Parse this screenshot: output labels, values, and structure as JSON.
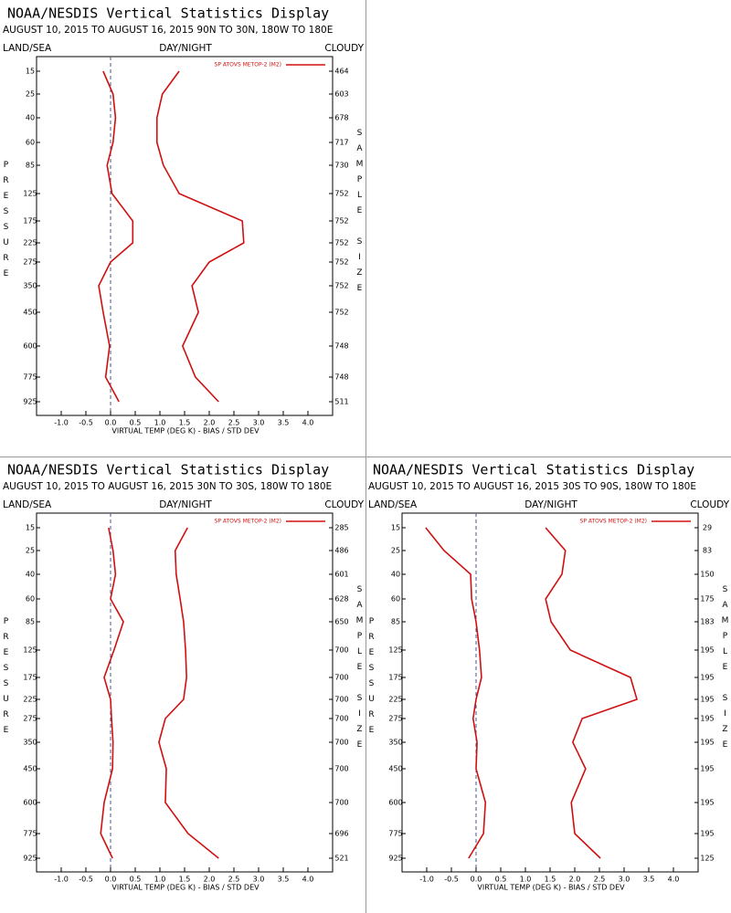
{
  "chart_data": [
    {
      "type": "line",
      "title": "NOAA/NESDIS Vertical Statistics Display",
      "subtitle": "AUGUST 10, 2015 TO AUGUST 16, 2015  90N TO 30N, 180W TO 180E",
      "left_label": "LAND/SEA",
      "center_label": "DAY/NIGHT",
      "right_label": "CLOUDY",
      "ylabel": "PRESSURE",
      "y2label": "SAMPLE SIZE",
      "xlabel": "VIRTUAL TEMP (DEG K) - BIAS / STD DEV",
      "categories": [
        15,
        25,
        40,
        60,
        85,
        125,
        175,
        225,
        275,
        350,
        450,
        600,
        775,
        925
      ],
      "sample_size": [
        464,
        603,
        678,
        717,
        730,
        752,
        752,
        752,
        752,
        752,
        752,
        748,
        748,
        511
      ],
      "series": [
        {
          "name": "SP ATOVS METOP-2 (M2)",
          "color": "#d01010",
          "bias": [
            -0.15,
            0.05,
            0.1,
            0.05,
            -0.07,
            0.03,
            0.45,
            0.45,
            0.0,
            -0.24,
            -0.15,
            -0.02,
            -0.1,
            0.17
          ],
          "std_dev": [
            1.39,
            1.05,
            0.94,
            0.94,
            1.07,
            1.39,
            2.67,
            2.7,
            2.0,
            1.65,
            1.78,
            1.46,
            1.72,
            2.19
          ]
        }
      ],
      "xlim": [
        -1.5,
        4.5
      ],
      "xticks": [
        {
          "value": -1,
          "label": "-1.0"
        },
        -0.5,
        {
          "value": 0,
          "label": "0.0"
        },
        0.5,
        {
          "value": 1,
          "label": "1.0"
        },
        1.5,
        {
          "value": 2,
          "label": "2.0"
        },
        2.5,
        {
          "value": 3,
          "label": "3.0"
        },
        3.5,
        {
          "value": 4,
          "label": "4.0"
        }
      ],
      "legend": "upper right"
    },
    {
      "type": "line",
      "title": "NOAA/NESDIS Vertical Statistics Display",
      "subtitle": "AUGUST 10, 2015 TO AUGUST 16, 2015  30N TO 30S, 180W TO 180E",
      "left_label": "LAND/SEA",
      "center_label": "DAY/NIGHT",
      "right_label": "CLOUDY",
      "ylabel": "PRESSURE",
      "y2label": "SAMPLE SIZE",
      "xlabel": "VIRTUAL TEMP (DEG K) - BIAS / STD DEV",
      "categories": [
        15,
        25,
        40,
        60,
        85,
        125,
        175,
        225,
        275,
        350,
        450,
        600,
        775,
        925
      ],
      "sample_size": [
        285,
        486,
        601,
        628,
        650,
        700,
        700,
        700,
        700,
        700,
        700,
        700,
        696,
        521
      ],
      "series": [
        {
          "name": "SP ATOVS METOP-2 (M2)",
          "color": "#d01010",
          "bias": [
            -0.04,
            0.05,
            0.1,
            0.0,
            0.26,
            0.07,
            -0.13,
            0.0,
            0.02,
            0.05,
            0.04,
            -0.13,
            -0.2,
            0.04
          ],
          "std_dev": [
            1.56,
            1.31,
            1.33,
            1.41,
            1.48,
            1.52,
            1.54,
            1.48,
            1.11,
            0.98,
            1.13,
            1.11,
            1.57,
            2.19
          ]
        }
      ],
      "xlim": [
        -1.5,
        4.5
      ],
      "xticks": [
        {
          "value": -1,
          "label": "-1.0"
        },
        -0.5,
        {
          "value": 0,
          "label": "0.0"
        },
        0.5,
        {
          "value": 1,
          "label": "1.0"
        },
        1.5,
        {
          "value": 2,
          "label": "2.0"
        },
        2.5,
        {
          "value": 3,
          "label": "3.0"
        },
        3.5,
        {
          "value": 4,
          "label": "4.0"
        }
      ],
      "legend": "upper right"
    },
    {
      "type": "line",
      "title": "NOAA/NESDIS Vertical Statistics Display",
      "subtitle": "AUGUST 10, 2015 TO AUGUST 16, 2015  30S TO 90S, 180W TO 180E",
      "left_label": "LAND/SEA",
      "center_label": "DAY/NIGHT",
      "right_label": "CLOUDY",
      "ylabel": "PRESSURE",
      "y2label": "SAMPLE SIZE",
      "xlabel": "VIRTUAL TEMP (DEG K) - BIAS / STD DEV",
      "categories": [
        15,
        25,
        40,
        60,
        85,
        125,
        175,
        225,
        275,
        350,
        450,
        600,
        775,
        925
      ],
      "sample_size": [
        29,
        83,
        150,
        175,
        183,
        195,
        195,
        195,
        195,
        195,
        195,
        195,
        195,
        125
      ],
      "series": [
        {
          "name": "SP ATOVS METOP-2 (M2)",
          "color": "#d01010",
          "bias": [
            -1.02,
            -0.65,
            -0.11,
            -0.09,
            0.0,
            0.07,
            0.11,
            0.0,
            -0.06,
            0.02,
            0.0,
            0.19,
            0.15,
            -0.15
          ],
          "std_dev": [
            1.41,
            1.81,
            1.74,
            1.41,
            1.52,
            1.91,
            3.13,
            3.26,
            2.15,
            1.96,
            2.22,
            1.93,
            2.0,
            2.52
          ]
        }
      ],
      "xlim": [
        -1.5,
        4.5
      ],
      "xticks": [
        {
          "value": -1,
          "label": "-1.0"
        },
        -0.5,
        {
          "value": 0,
          "label": "0.0"
        },
        0.5,
        {
          "value": 1,
          "label": "1.0"
        },
        1.5,
        {
          "value": 2,
          "label": "2.0"
        },
        2.5,
        {
          "value": 3,
          "label": "3.0"
        },
        3.5,
        {
          "value": 4,
          "label": "4.0"
        }
      ],
      "legend": "upper right"
    }
  ]
}
